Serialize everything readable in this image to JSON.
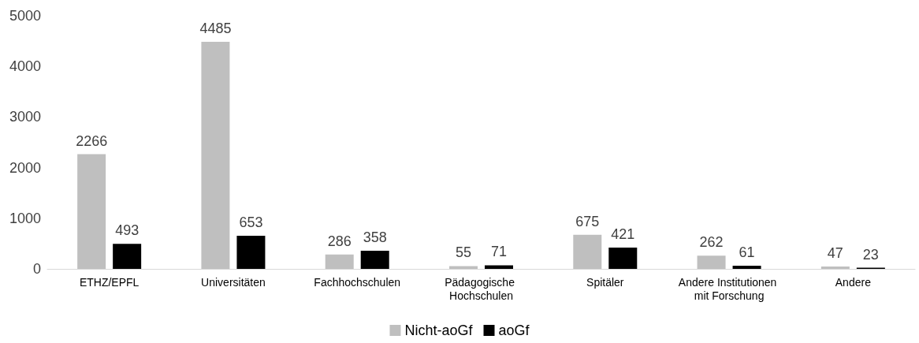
{
  "chart_data": {
    "type": "bar",
    "categories": [
      "ETHZ/EPFL",
      "Universitäten",
      "Fachhochschulen",
      "Pädagogische Hochschulen",
      "Spitäler",
      "Andere Institutionen mit Forschung",
      "Andere"
    ],
    "series": [
      {
        "name": "Nicht-aoGf",
        "color": "#bfbfbf",
        "values": [
          2266,
          4485,
          286,
          55,
          675,
          262,
          47
        ]
      },
      {
        "name": "aoGf",
        "color": "#000000",
        "values": [
          493,
          653,
          358,
          71,
          421,
          61,
          23
        ]
      }
    ],
    "ylim": [
      0,
      5000
    ],
    "yticks": [
      0,
      1000,
      2000,
      3000,
      4000,
      5000
    ],
    "grid": false,
    "legend": "bottom",
    "data_labels": true
  }
}
